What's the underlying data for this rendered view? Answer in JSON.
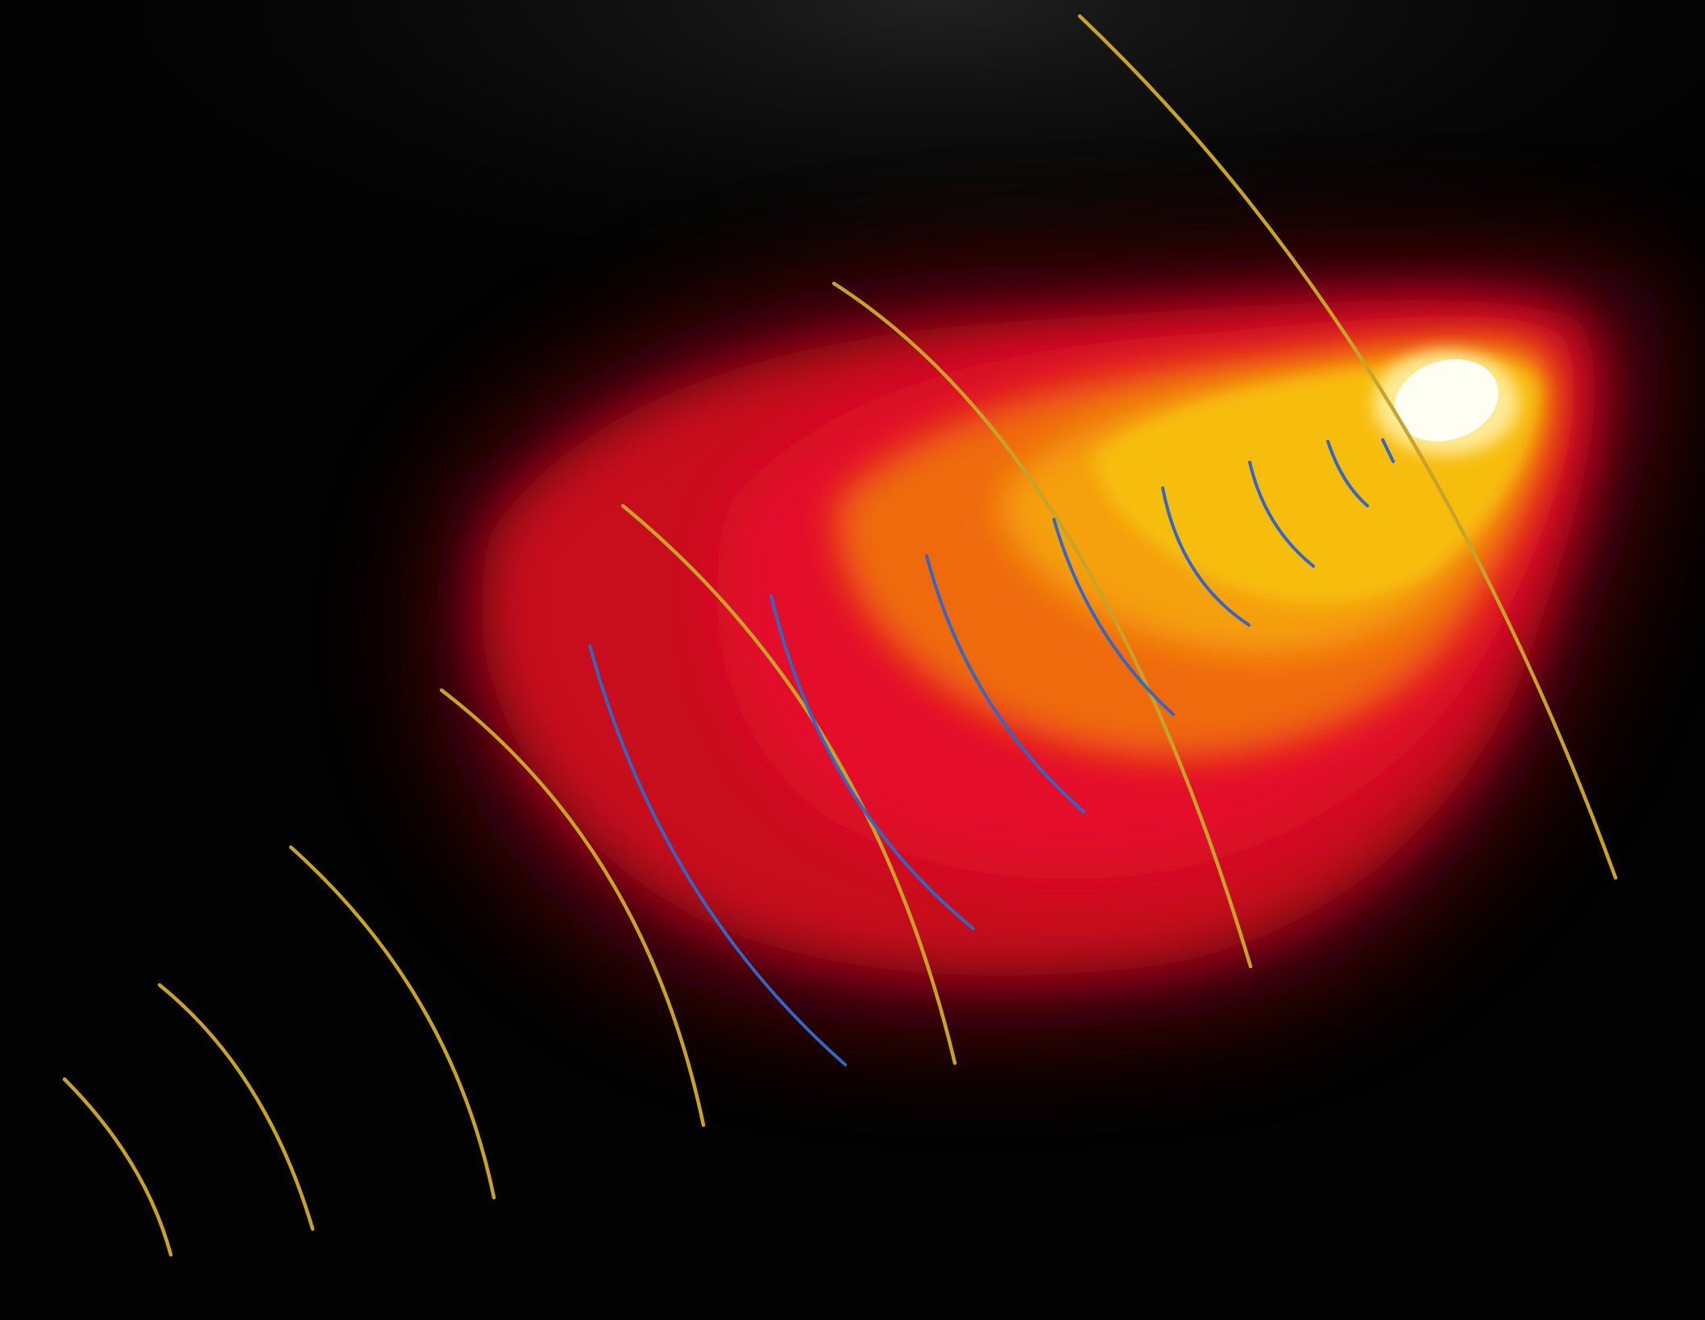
{
  "illustration": {
    "description_text": "",
    "palette": {
      "background": "#020202",
      "sheen": "#3a3a3a",
      "plume_dark_red": "#5a0608",
      "plume_red": "#c80a1c",
      "plume_crimson": "#e4102a",
      "plume_orange": "#ef6a0c",
      "plume_amber": "#f5a00a",
      "plume_yellow": "#f7bd09",
      "source_core": "#fffef2",
      "gold_wave": "#c9a22a",
      "blue_wave": "#3466c4"
    },
    "elements": {
      "plume": "glowing-emission-plume",
      "source": "bright-point-source",
      "gold_waves": "gold-wave-arc",
      "blue_waves": "blue-wave-arc"
    }
  }
}
